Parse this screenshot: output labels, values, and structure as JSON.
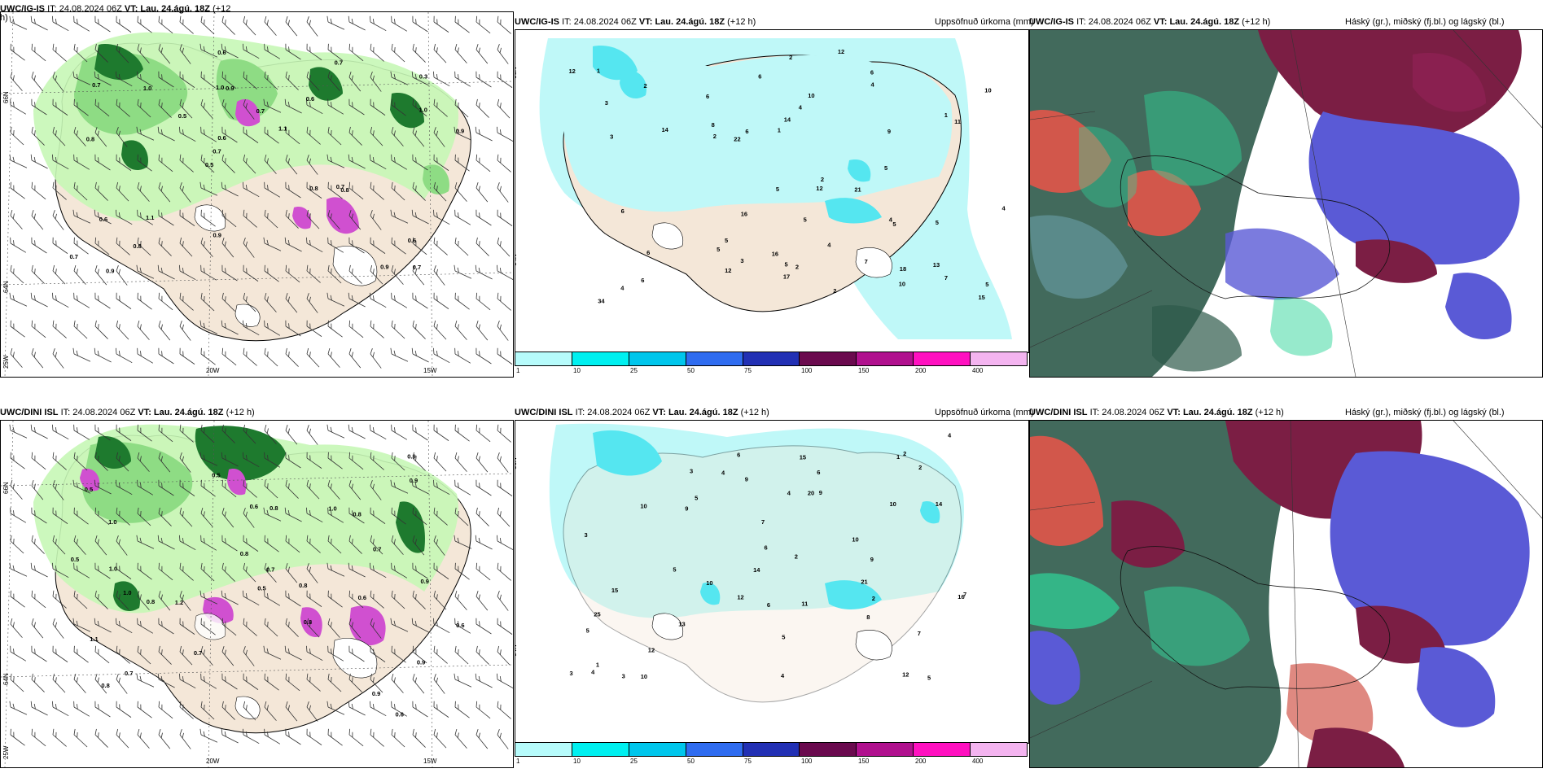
{
  "rows": [
    {
      "model": "UWC/IG-IS",
      "it_label": "IT:",
      "it_value": "24.08.2024 06Z",
      "vt_label": "VT:",
      "vt_value": "Lau. 24.ágú. 18Z",
      "lead": "(+12 h)",
      "left_title_model": "UWC/IG-IS",
      "left_title_rest": "IT: 24.08.2024 06Z",
      "left_title_vt": "VT: Lau. 24.ágú. 18Z",
      "left_title_lead": "(+12",
      "left_title_wrap": "h)",
      "precip_title": "Uppsöfnuð úrkoma (mm)",
      "cloud_title": "Háský (gr.), miðský (fj.bl.) og lágský (bl.)",
      "left_values": [
        "0.7",
        "0.8",
        "0.3",
        "0.5",
        "0.6",
        "0.9",
        "1.0",
        "0.7",
        "0.6",
        "0.5",
        "0.7",
        "0.8",
        "0.9",
        "1.1",
        "0.8",
        "0.7",
        "0.6",
        "0.9",
        "0.8",
        "1.0",
        "0.7",
        "0.9",
        "0.6",
        "1.0",
        "0.7",
        "1.1",
        "0.9",
        "0.6",
        "0.7"
      ],
      "precip_values": [
        "4",
        "5",
        "2",
        "5",
        "6",
        "12",
        "13",
        "6",
        "18",
        "5",
        "15",
        "2",
        "3",
        "2",
        "7",
        "8",
        "4",
        "6",
        "5",
        "10",
        "12",
        "6",
        "17",
        "21",
        "5",
        "4",
        "6",
        "4",
        "11",
        "4",
        "7",
        "16",
        "10",
        "34",
        "12",
        "2",
        "5",
        "9",
        "3",
        "16",
        "14",
        "5",
        "6",
        "12",
        "5",
        "22",
        "14",
        "2",
        "4",
        "5",
        "3",
        "1",
        "1",
        "10",
        "6",
        "2",
        "1"
      ]
    },
    {
      "model": "UWC/DINI ISL",
      "it_label": "IT:",
      "it_value": "24.08.2024 06Z",
      "vt_label": "VT:",
      "vt_value": "Lau. 24.ágú. 18Z",
      "lead": "(+12 h)",
      "left_title_model": "UWC/DINI ISL",
      "left_title_rest": "IT: 24.08.2024 06Z",
      "left_title_vt": "VT: Lau. 24.ágú. 18Z",
      "left_title_lead": "(+12 h)",
      "left_title_wrap": "",
      "precip_title": "Uppsöfnuð úrkoma (mm)",
      "cloud_title": "Háský (gr.), miðský (fj.bl.) og lágský (bl.)",
      "left_values": [
        "0.6",
        "1.0",
        "0.8",
        "0.5",
        "0.9",
        "1.0",
        "0.7",
        "1.2",
        "0.8",
        "0.6",
        "1.0",
        "0.9",
        "0.7",
        "0.5",
        "0.8",
        "1.1",
        "0.6",
        "0.7",
        "0.5",
        "0.8",
        "0.9",
        "0.8",
        "0.7",
        "0.6",
        "0.9",
        "1.0",
        "0.8",
        "0.5",
        "0.8",
        "0.9"
      ],
      "precip_values": [
        "7",
        "5",
        "2",
        "4",
        "9",
        "14",
        "10",
        "6",
        "12",
        "5",
        "9",
        "10",
        "6",
        "4",
        "7",
        "8",
        "5",
        "12",
        "16",
        "14",
        "5",
        "9",
        "3",
        "10",
        "5",
        "4",
        "6",
        "11",
        "9",
        "10",
        "4",
        "25",
        "6",
        "13",
        "21",
        "10",
        "15",
        "20",
        "7",
        "4",
        "3",
        "15",
        "12",
        "3",
        "2",
        "2",
        "1",
        "1",
        "3",
        "2"
      ]
    }
  ],
  "axis": {
    "lat66": "66N",
    "lat64": "64N",
    "lon20": "20W",
    "lon15": "15W",
    "lon25": "25W"
  },
  "legend": {
    "labels": [
      "1",
      "10",
      "25",
      "50",
      "75",
      "100",
      "150",
      "200",
      "400"
    ],
    "colors": [
      "#b6fbfb",
      "#00f0f0",
      "#00c6ec",
      "#2f6cf0",
      "#2230b4",
      "#6a0a4e",
      "#b0108e",
      "#ff10c0",
      "#f4b4f0"
    ]
  },
  "colors": {
    "land": "#f4e7d8",
    "light_green": "#c6f7b6",
    "mid_green": "#8edc84",
    "dark_green": "#1e7a2e",
    "magenta": "#d050d0",
    "cyan_light": "#bff8f8",
    "cyan_mid": "#55e6f0",
    "cloud_dark_green": "#2d5a4a",
    "cloud_maroon": "#7b1e44",
    "cloud_blue": "#5a5ad6",
    "cloud_mint": "#2fd69a",
    "cloud_red": "#d2574b"
  }
}
